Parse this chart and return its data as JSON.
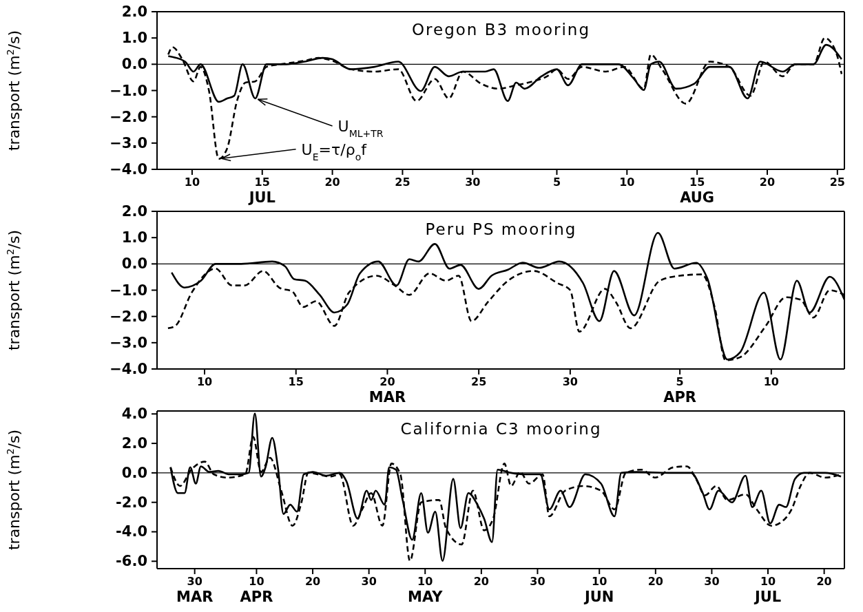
{
  "chart_data": [
    {
      "type": "line",
      "title": "Oregon B3 mooring",
      "ylabel": "transport (m$^{2}$/s)",
      "xlim": [
        "--07-07T12:00",
        "--08-25T12:00"
      ],
      "ylim": [
        -4,
        2
      ],
      "xticks": [
        {
          "value": "--07-10",
          "label": "10"
        },
        {
          "value": "--07-15",
          "label": "15\nJUL"
        },
        {
          "value": "--07-20",
          "label": "20"
        },
        {
          "value": "--07-25",
          "label": "25"
        },
        {
          "value": "--07-30",
          "label": "30"
        },
        {
          "value": "--08-05",
          "label": "5"
        },
        {
          "value": "--08-10",
          "label": "10"
        },
        {
          "value": "--08-15",
          "label": "15\nAUG"
        },
        {
          "value": "--08-20",
          "label": "20"
        },
        {
          "value": "--08-25",
          "label": "25"
        }
      ],
      "yticks": [
        {
          "value": 2,
          "label": "2.0"
        },
        {
          "value": 1,
          "label": "1.0"
        },
        {
          "value": 0,
          "label": "0.0"
        },
        {
          "value": -1,
          "label": "−1.0"
        },
        {
          "value": -2,
          "label": "−2.0"
        },
        {
          "value": -3,
          "label": "−3.0"
        },
        {
          "value": -4,
          "label": "−4.0"
        }
      ],
      "ref_lines": [
        {
          "axis": "y",
          "value": 0,
          "color": "#000000"
        }
      ],
      "annotations": [
        {
          "text": "U$_{ML+TR}$",
          "x": "--07-14T12:00",
          "y": -1.3
        },
        {
          "text": "U$_{E}$=τ/ρ$_{o}$f",
          "x": "--07-11T21:36",
          "y": -3.6
        }
      ],
      "series": [
        {
          "color": "#000000",
          "line_style": "solid",
          "x": [
            "--07-08T07:12",
            "--07-09T12:00",
            "--07-10T02:24",
            "--07-10T14:24",
            "--07-11T21:36",
            "--07-12T12:00",
            "--07-13",
            "--07-13T14:24",
            "--07-14T12:00",
            "--07-15T07:12",
            "--07-16T16:48",
            "--07-18",
            "--07-19T07:12",
            "--07-20",
            "--07-21T07:12",
            "--07-23",
            "--07-24T16:48",
            "--07-26T07:12",
            "--07-27T07:12",
            "--07-28T07:12",
            "--07-29T07:12",
            "--07-30T21:36",
            "--07-31T12:00",
            "--08-01T12:00",
            "--08-02T02:24",
            "--08-02T16:48",
            "--08-03T21:36",
            "--08-05",
            "--08-05T19:12",
            "--08-06T19:12",
            "--08-07T19:12",
            "--08-09T09:36",
            "--08-10T12:00",
            "--08-11T04:48",
            "--08-11T16:48",
            "--08-12T07:12",
            "--08-13T12:00",
            "--08-14T19:12",
            "--08-15T21:36",
            "--08-17T07:12",
            "--08-18T14:24",
            "--08-19T12:00",
            "--08-21T02:24",
            "--08-22",
            "--08-23T07:12",
            "--08-24T04:48",
            "--08-25T07:12"
          ],
          "values": [
            0.31,
            0.1,
            -0.28,
            0,
            -1.43,
            -1.3,
            -1.2,
            0,
            -1.3,
            0,
            0,
            0.1,
            0.24,
            0.19,
            -0.19,
            -0.1,
            0.1,
            -1.02,
            -0.1,
            -0.46,
            -0.28,
            -0.28,
            -0.19,
            -1.4,
            -0.7,
            -0.93,
            -0.46,
            -0.19,
            -0.8,
            0,
            0,
            0,
            -0.56,
            -0.98,
            0,
            0.1,
            -0.93,
            -0.74,
            -0.1,
            -0.1,
            -1.3,
            0.1,
            -0.28,
            0,
            0,
            0.74,
            0.19
          ]
        },
        {
          "color": "#000000",
          "line_style": "dashed",
          "x": [
            "--07-08T07:12",
            "--07-08T14:24",
            "--07-09T07:12",
            "--07-10T02:24",
            "--07-10T14:24",
            "--07-11T04:48",
            "--07-11T21:36",
            "--07-12T12:00",
            "--07-13T04:48",
            "--07-13T19:12",
            "--07-14T12:00",
            "--07-15T07:12",
            "--07-16T07:12",
            "--07-18",
            "--07-19",
            "--07-20",
            "--07-21T07:12",
            "--07-23",
            "--07-24T16:48",
            "--07-26",
            "--07-27T07:12",
            "--07-28T07:12",
            "--07-29T07:12",
            "--07-30T14:24",
            "--07-31T19:12",
            "--08-02T02:24",
            "--08-03T07:12",
            "--08-04T07:12",
            "--08-05",
            "--08-05T19:12",
            "--08-06T19:12",
            "--08-08T12:00",
            "--08-09T19:12",
            "--08-11T04:48",
            "--08-11T16:48",
            "--08-12T12:00",
            "--08-14T04:48",
            "--08-15T21:36",
            "--08-17T07:12",
            "--08-18T19:12",
            "--08-19T19:12",
            "--08-21T02:24",
            "--08-22",
            "--08-23T07:12",
            "--08-24T02:24",
            "--08-24T21:36",
            "--08-25T07:12"
          ],
          "values": [
            0.37,
            0.65,
            0.19,
            -0.65,
            -0.1,
            -1.0,
            -3.6,
            -3.2,
            -1.4,
            -0.7,
            -0.65,
            -0.1,
            0,
            0.13,
            0.24,
            0.13,
            -0.19,
            -0.28,
            -0.19,
            -1.4,
            -0.56,
            -1.3,
            -0.28,
            -0.74,
            -0.93,
            -0.8,
            -0.65,
            -0.46,
            -0.19,
            -0.56,
            -0.1,
            -0.28,
            -0.1,
            -0.93,
            0.37,
            -0.19,
            -1.5,
            0.1,
            -0.1,
            -1.2,
            0.1,
            -0.46,
            0,
            0,
            1.0,
            0.46,
            -0.37
          ]
        }
      ]
    },
    {
      "type": "line",
      "title": "Peru PS mooring",
      "ylabel": "transport (m$^{2}$/s)",
      "xlim": [
        "--03-07T09:36",
        "--04-14"
      ],
      "ylim": [
        -4,
        2
      ],
      "xticks": [
        {
          "value": "--03-10",
          "label": "10"
        },
        {
          "value": "--03-15",
          "label": "15"
        },
        {
          "value": "--03-20",
          "label": "20\nMAR"
        },
        {
          "value": "--03-25",
          "label": "25"
        },
        {
          "value": "--03-30",
          "label": "30"
        },
        {
          "value": "--04-05",
          "label": "5\nAPR"
        },
        {
          "value": "--04-10",
          "label": "10"
        }
      ],
      "yticks": [
        {
          "value": 2,
          "label": "2.0"
        },
        {
          "value": 1,
          "label": "1.0"
        },
        {
          "value": 0,
          "label": "0.0"
        },
        {
          "value": -1,
          "label": "−1.0"
        },
        {
          "value": -2,
          "label": "−2.0"
        },
        {
          "value": -3,
          "label": "−3.0"
        },
        {
          "value": -4,
          "label": "−4.0"
        }
      ],
      "ref_lines": [
        {
          "axis": "y",
          "value": 0,
          "color": "#000000"
        }
      ],
      "series": [
        {
          "color": "#000000",
          "line_style": "solid",
          "x": [
            "--03-08T04:48",
            "--03-08T21:36",
            "--03-09T19:12",
            "--03-10T14:24",
            "--03-12",
            "--03-13T16:48",
            "--03-14T09:36",
            "--03-14T21:36",
            "--03-15T12:00",
            "--03-16T07:12",
            "--03-17T02:24",
            "--03-17T19:12",
            "--03-18T12:00",
            "--03-19T12:00",
            "--03-20T12:00",
            "--03-21T04:48",
            "--03-21T16:48",
            "--03-22T14:24",
            "--03-23T09:36",
            "--03-24",
            "--03-25",
            "--03-25T16:48",
            "--03-26T14:24",
            "--03-27T09:36",
            "--03-28T07:12",
            "--03-29T09:36",
            "--03-30T16:48",
            "--03-31T14:24",
            "--04-01T09:36",
            "--04-02T12:00",
            "--04-03T19:12",
            "--04-04T16:48",
            "--04-05T21:36",
            "--04-06T12:00",
            "--04-07T14:24",
            "--04-08T07:12",
            "--04-09T14:24",
            "--04-10T12:00",
            "--04-11T09:36",
            "--04-12T02:24",
            "--04-13T04:48",
            "--04-14"
          ],
          "values": [
            -0.33,
            -0.9,
            -0.64,
            0,
            0,
            0.09,
            -0.09,
            -0.58,
            -0.64,
            -1.18,
            -1.85,
            -1.55,
            -0.36,
            0.09,
            -0.82,
            0.18,
            0.09,
            0.76,
            -0.18,
            -0.04,
            -0.95,
            -0.45,
            -0.22,
            0.05,
            -0.15,
            0.09,
            -0.73,
            -2.18,
            -0.27,
            -1.96,
            1.18,
            -0.18,
            0.04,
            -0.55,
            -3.64,
            -3.36,
            -1.09,
            -3.64,
            -0.64,
            -1.85,
            -0.49,
            -1.36
          ]
        },
        {
          "color": "#000000",
          "line_style": "dashed",
          "x": [
            "--03-08",
            "--03-08T09:36",
            "--03-09T07:12",
            "--03-10T14:24",
            "--03-11T12:00",
            "--03-12T04:48",
            "--03-13T04:48",
            "--03-14T02:24",
            "--03-14T19:12",
            "--03-15T09:36",
            "--03-16T02:24",
            "--03-17T02:24",
            "--03-17T21:36",
            "--03-19T09:36",
            "--03-20T09:36",
            "--03-21T04:48",
            "--03-22T07:12",
            "--03-23T04:48",
            "--03-23T21:36",
            "--03-24T14:24",
            "--03-25T12:00",
            "--03-26T14:24",
            "--03-28",
            "--03-29T07:12",
            "--03-30",
            "--03-30T12:00",
            "--03-31T21:36",
            "--04-01T12:00",
            "--04-02T07:12",
            "--04-03T21:36",
            "--04-05",
            "--04-06T04:48",
            "--04-06T21:36",
            "--04-07T12:00",
            "--04-08T07:12",
            "--04-09T16:48",
            "--04-10T19:12",
            "--04-11T14:24",
            "--04-12T07:12",
            "--04-13T04:48",
            "--04-14"
          ],
          "values": [
            -2.45,
            -2.36,
            -1.09,
            -0.18,
            -0.82,
            -0.82,
            -0.27,
            -0.91,
            -1.05,
            -1.64,
            -1.42,
            -2.36,
            -1.09,
            -0.45,
            -0.82,
            -1.18,
            -0.36,
            -0.64,
            -0.45,
            -2.18,
            -1.45,
            -0.64,
            -0.27,
            -0.73,
            -1.0,
            -2.58,
            -0.95,
            -1.45,
            -2.45,
            -0.64,
            -0.45,
            -0.4,
            -1.64,
            -3.67,
            -3.55,
            -2.36,
            -1.27,
            -1.36,
            -2.04,
            -1.0,
            -1.18
          ]
        }
      ]
    },
    {
      "type": "line",
      "title": "California C3 mooring",
      "ylabel": "transport (m$^{2}$/s)",
      "xlim": [
        "--03-23T07:12",
        "--07-23T14:24"
      ],
      "ylim": [
        -6.5,
        4.2
      ],
      "xticks": [
        {
          "value": "--03-30",
          "label": "30\nMAR"
        },
        {
          "value": "--04-10",
          "label": "10\nAPR"
        },
        {
          "value": "--04-20",
          "label": "20"
        },
        {
          "value": "--04-30",
          "label": "30"
        },
        {
          "value": "--05-10",
          "label": "10\nMAY"
        },
        {
          "value": "--05-20",
          "label": "20"
        },
        {
          "value": "--05-30",
          "label": "30"
        },
        {
          "value": "--06-10",
          "label": "10\nJUN"
        },
        {
          "value": "--06-20",
          "label": "20"
        },
        {
          "value": "--06-30",
          "label": "30"
        },
        {
          "value": "--07-10",
          "label": "10\nJUL"
        },
        {
          "value": "--07-20",
          "label": "20"
        }
      ],
      "yticks": [
        {
          "value": 4,
          "label": "4.0"
        },
        {
          "value": 2,
          "label": "2.0"
        },
        {
          "value": 0,
          "label": "0.0"
        },
        {
          "value": -2,
          "label": "-2.0"
        },
        {
          "value": -4,
          "label": "-4.0"
        },
        {
          "value": -6,
          "label": "-6.0"
        }
      ],
      "ref_lines": [
        {
          "axis": "y",
          "value": 0,
          "color": "#000000"
        }
      ],
      "series": [
        {
          "color": "#000000",
          "line_style": "solid",
          "x": [
            "--03-25T16:48",
            "--03-27",
            "--03-28T04:48",
            "--03-29T04:48",
            "--03-30T04:48",
            "--03-31T02:24",
            "--04-01T14:24",
            "--04-03T04:48",
            "--04-05T04:48",
            "--04-07T04:48",
            "--04-08T14:24",
            "--04-09T16:48",
            "--04-10T19:12",
            "--04-11T14:24",
            "--04-12T19:12",
            "--04-13T19:12",
            "--04-14T19:12",
            "--04-16",
            "--04-17T04:48",
            "--04-18T09:36",
            "--04-20",
            "--04-22T09:36",
            "--04-24T19:12",
            "--04-26",
            "--04-28",
            "--04-29T14:24",
            "--04-30T09:36",
            "--05-01T04:48",
            "--05-02T19:12",
            "--05-03T14:24",
            "--05-04T19:12",
            "--05-06",
            "--05-07T16:48",
            "--05-09T07:12",
            "--05-10T12:00",
            "--05-11T19:12",
            "--05-13T02:24",
            "--05-15",
            "--05-16T07:12",
            "--05-17T16:48",
            "--05-19T07:12",
            "--05-20T12:00",
            "--05-21T21:36",
            "--05-22T21:36",
            "--05-25T07:12",
            "--05-27T16:48",
            "--05-30T12:00",
            "--06-01T02:24",
            "--06-03T02:24",
            "--06-04T16:48",
            "--06-07T12:00",
            "--06-10T07:12",
            "--06-12T16:48",
            "--06-13T21:36",
            "--06-16T16:48",
            "--06-22T07:12",
            "--06-26T07:12",
            "--06-28T09:36",
            "--06-29T14:24",
            "--07-01T04:48",
            "--07-03T14:24",
            "--07-06",
            "--07-07T04:48",
            "--07-08T19:12",
            "--07-10T09:36",
            "--07-12",
            "--07-13T04:48",
            "--07-14T19:12",
            "--07-16T09:36",
            "--07-20T04:48",
            "--07-23"
          ],
          "values": [
            0.38,
            -1.37,
            -1.37,
            0.38,
            -0.73,
            0.44,
            0.06,
            0.13,
            -0.1,
            -0.1,
            0,
            4.03,
            -0.25,
            0.38,
            2.38,
            0.38,
            -2.79,
            -2.16,
            -2.63,
            -0.1,
            0.06,
            -0.19,
            0,
            -0.57,
            -3.11,
            -1.21,
            -1.84,
            -1.21,
            -2.16,
            0.38,
            0.22,
            -1.84,
            -4.54,
            -1.37,
            -4.06,
            -2.63,
            -5.97,
            -0.41,
            -3.75,
            -1.37,
            -2.16,
            -3.11,
            -4.7,
            0.22,
            0,
            -0.1,
            -0.1,
            -2.48,
            -1.21,
            -2.32,
            -0.1,
            -0.73,
            -2.95,
            0,
            0.06,
            0,
            0,
            -1.37,
            -2.48,
            -1.21,
            -2,
            -0.19,
            -2.32,
            -1.21,
            -3.43,
            -2.16,
            -2.32,
            -0.41,
            0,
            0,
            -0.25
          ]
        },
        {
          "color": "#000000",
          "line_style": "dashed",
          "x": [
            "--03-25T16:48",
            "--03-27T09:36",
            "--03-29T09:36",
            "--03-31T19:12",
            "--04-02T09:36",
            "--04-04T19:12",
            "--04-08",
            "--04-09T09:36",
            "--04-10T19:12",
            "--04-12T09:36",
            "--04-14T09:36",
            "--04-16T09:36",
            "--04-18",
            "--04-19T04:48",
            "--04-23T04:48",
            "--04-24T19:12",
            "--04-27T04:48",
            "--04-28T19:12",
            "--04-30T09:36",
            "--05-02T09:36",
            "--05-04",
            "--05-05T14:24",
            "--05-07T07:12",
            "--05-09T07:12",
            "--05-12T12:00",
            "--05-13T16:48",
            "--05-16T12:00",
            "--05-18T12:00",
            "--05-20T12:00",
            "--05-22T02:24",
            "--05-24T02:24",
            "--05-25T07:12",
            "--05-26T21:36",
            "--05-28T12:00",
            "--05-30T21:36",
            "--06-01T02:24",
            "--06-03T21:36",
            "--06-07T02:24",
            "--06-10T07:12",
            "--06-12T16:48",
            "--06-14T16:48",
            "--06-17T12:00",
            "--06-19T21:36",
            "--06-23T04:48",
            "--06-25T14:24",
            "--06-27T04:48",
            "--06-28T19:12",
            "--06-30T19:12",
            "--07-02T19:12",
            "--07-06",
            "--07-08",
            "--07-10T14:24",
            "--07-12T14:24",
            "--07-14T04:48",
            "--07-15T19:12",
            "--07-17T09:36",
            "--07-20T04:48",
            "--07-23"
          ],
          "values": [
            0.38,
            -0.89,
            0.22,
            0.76,
            -0.1,
            -0.32,
            -0.1,
            2.44,
            0.06,
            1.02,
            -1.21,
            -3.59,
            -2,
            0,
            -0.25,
            -0.1,
            -3.59,
            -2.48,
            -1.37,
            -3.59,
            0.63,
            -0.1,
            -5.97,
            -2,
            -1.84,
            -3.75,
            -4.86,
            -1.21,
            -3.9,
            -3.11,
            0.63,
            -0.89,
            0.06,
            -0.73,
            -0.1,
            -2.95,
            -1.21,
            -0.89,
            -1.21,
            -2.48,
            0,
            0.22,
            -0.32,
            0.38,
            0.44,
            -0.41,
            -1.52,
            -0.89,
            -1.84,
            -1.46,
            -2.48,
            -3.59,
            -3.27,
            -2.48,
            -0.89,
            0,
            -0.32,
            -0.1
          ]
        }
      ]
    }
  ]
}
